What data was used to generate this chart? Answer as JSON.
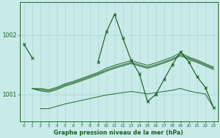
{
  "xlabel": "Graphe pression niveau de la mer (hPa)",
  "bg_color": "#c8ebe9",
  "grid_color": "#aad4d0",
  "line_color": "#1a5e20",
  "xlim": [
    -0.5,
    23.5
  ],
  "ylim": [
    1000.55,
    1002.55
  ],
  "yticks": [
    1001,
    1002
  ],
  "xticks": [
    0,
    1,
    2,
    3,
    4,
    5,
    6,
    7,
    8,
    9,
    10,
    11,
    12,
    13,
    14,
    15,
    16,
    17,
    18,
    19,
    20,
    21,
    22,
    23
  ],
  "line_main_x": [
    0,
    1,
    9,
    10,
    11,
    12,
    13,
    14,
    15,
    16,
    17,
    18,
    19,
    20,
    21,
    22,
    23
  ],
  "line_main_y": [
    1001.85,
    1001.62,
    1001.55,
    1002.05,
    1002.35,
    1001.95,
    1001.58,
    1001.35,
    1000.88,
    1001.0,
    1001.25,
    1001.5,
    1001.72,
    1001.55,
    1001.3,
    1001.12,
    1000.78
  ],
  "line_bottom_x": [
    2,
    3,
    4,
    5,
    6,
    7,
    8,
    9,
    10,
    11,
    12,
    13,
    14,
    15,
    16,
    17,
    18,
    19,
    20,
    21,
    22,
    23
  ],
  "line_bottom_y": [
    1000.76,
    1000.76,
    1000.8,
    1000.84,
    1000.87,
    1000.9,
    1000.93,
    1000.96,
    1000.99,
    1001.01,
    1001.03,
    1001.05,
    1001.03,
    1001.01,
    1001.03,
    1001.05,
    1001.07,
    1001.1,
    1001.06,
    1001.03,
    1001.01,
    1000.78
  ],
  "line_mid1_x": [
    1,
    2,
    3,
    4,
    5,
    6,
    7,
    8,
    9,
    10,
    11,
    12,
    13,
    14,
    15,
    16,
    17,
    18,
    19,
    20,
    21,
    22,
    23
  ],
  "line_mid1_y": [
    1001.1,
    1001.1,
    1001.08,
    1001.12,
    1001.18,
    1001.22,
    1001.27,
    1001.32,
    1001.37,
    1001.44,
    1001.49,
    1001.53,
    1001.57,
    1001.53,
    1001.49,
    1001.53,
    1001.58,
    1001.63,
    1001.7,
    1001.63,
    1001.58,
    1001.52,
    1001.46
  ],
  "line_mid2_x": [
    1,
    2,
    3,
    4,
    5,
    6,
    7,
    8,
    9,
    10,
    11,
    12,
    13,
    14,
    15,
    16,
    17,
    18,
    19,
    20,
    21,
    22,
    23
  ],
  "line_mid2_y": [
    1001.1,
    1001.08,
    1001.06,
    1001.1,
    1001.16,
    1001.2,
    1001.25,
    1001.3,
    1001.35,
    1001.41,
    1001.46,
    1001.5,
    1001.54,
    1001.5,
    1001.46,
    1001.5,
    1001.55,
    1001.6,
    1001.67,
    1001.61,
    1001.56,
    1001.5,
    1001.44
  ],
  "line_mid3_x": [
    1,
    2,
    3,
    4,
    5,
    6,
    7,
    8,
    9,
    10,
    11,
    12,
    13,
    14,
    15,
    16,
    17,
    18,
    19,
    20,
    21,
    22,
    23
  ],
  "line_mid3_y": [
    1001.1,
    1001.06,
    1001.04,
    1001.08,
    1001.14,
    1001.18,
    1001.23,
    1001.28,
    1001.33,
    1001.39,
    1001.44,
    1001.48,
    1001.52,
    1001.48,
    1001.44,
    1001.48,
    1001.53,
    1001.58,
    1001.65,
    1001.59,
    1001.54,
    1001.48,
    1001.42
  ]
}
